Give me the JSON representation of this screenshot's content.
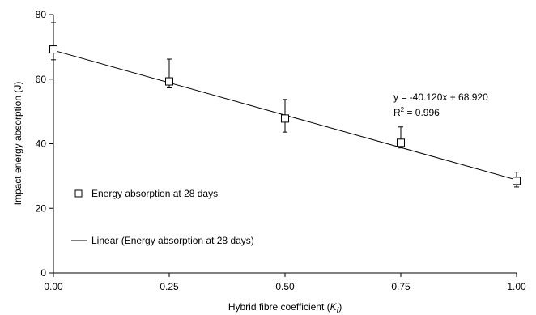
{
  "chart_data": {
    "type": "scatter",
    "title": "",
    "xlabel": "Hybrid fibre coefficient",
    "xlabel_symbol": "K",
    "xlabel_subscript": "f",
    "ylabel": "Impact energy absorption (J)",
    "xlim": [
      0,
      1
    ],
    "ylim": [
      0,
      80
    ],
    "x_ticks": [
      0,
      0.25,
      0.5,
      0.75,
      1
    ],
    "x_tick_labels": [
      "0.00",
      "0.25",
      "0.50",
      "0.75",
      "1.00"
    ],
    "y_ticks": [
      0,
      20,
      40,
      60,
      80
    ],
    "y_tick_labels": [
      "0",
      "20",
      "40",
      "60",
      "80"
    ],
    "grid": false,
    "legend_position": "left",
    "series": [
      {
        "name": "Energy absorption at 28 days",
        "marker": "open-square",
        "x": [
          0,
          0.25,
          0.5,
          0.75,
          1
        ],
        "y": [
          69.2,
          59.3,
          47.8,
          40.3,
          28.5
        ],
        "error_upper": [
          77.5,
          66.2,
          53.7,
          45.2,
          31.2
        ],
        "error_lower": [
          66.0,
          57.3,
          43.6,
          38.7,
          26.6
        ]
      },
      {
        "name": "Linear (Energy absorption at 28 days)",
        "kind": "trendline",
        "slope": -40.12,
        "intercept": 68.92
      }
    ],
    "annotations": {
      "equation": "y = -40.120x + 68.920",
      "r2_prefix": "R",
      "r2_exp": "2",
      "r2_suffix": " = 0.996"
    }
  }
}
